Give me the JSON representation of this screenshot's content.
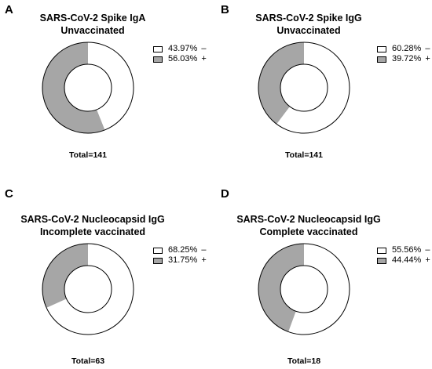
{
  "chart_data": [
    {
      "type": "pie",
      "panel_label": "A",
      "title": "SARS-CoV-2 Spike IgA\nUnvaccinated",
      "categories": [
        "–",
        "+"
      ],
      "percent_labels": [
        "43.97%",
        "56.03%"
      ],
      "values": [
        43.97,
        56.03
      ],
      "colors": [
        "#ffffff",
        "#a6a6a6"
      ],
      "total": "Total=141",
      "legend_position": "top-right"
    },
    {
      "type": "pie",
      "panel_label": "B",
      "title": "SARS-CoV-2 Spike IgG\nUnvaccinated",
      "categories": [
        "–",
        "+"
      ],
      "percent_labels": [
        "60.28%",
        "39.72%"
      ],
      "values": [
        60.28,
        39.72
      ],
      "colors": [
        "#ffffff",
        "#a6a6a6"
      ],
      "total": "Total=141",
      "legend_position": "top-right"
    },
    {
      "type": "pie",
      "panel_label": "C",
      "title": "SARS-CoV-2 Nucleocapsid IgG\nIncomplete vaccinated",
      "categories": [
        "–",
        "+"
      ],
      "percent_labels": [
        "68.25%",
        "31.75%"
      ],
      "values": [
        68.25,
        31.75
      ],
      "colors": [
        "#ffffff",
        "#a6a6a6"
      ],
      "total": "Total=63",
      "legend_position": "top-right"
    },
    {
      "type": "pie",
      "panel_label": "D",
      "title": "SARS-CoV-2 Nucleocapsid IgG\nComplete vaccinated",
      "categories": [
        "–",
        "+"
      ],
      "percent_labels": [
        "55.56%",
        "44.44%"
      ],
      "values": [
        55.56,
        44.44
      ],
      "colors": [
        "#ffffff",
        "#a6a6a6"
      ],
      "total": "Total=18",
      "legend_position": "top-right"
    }
  ]
}
